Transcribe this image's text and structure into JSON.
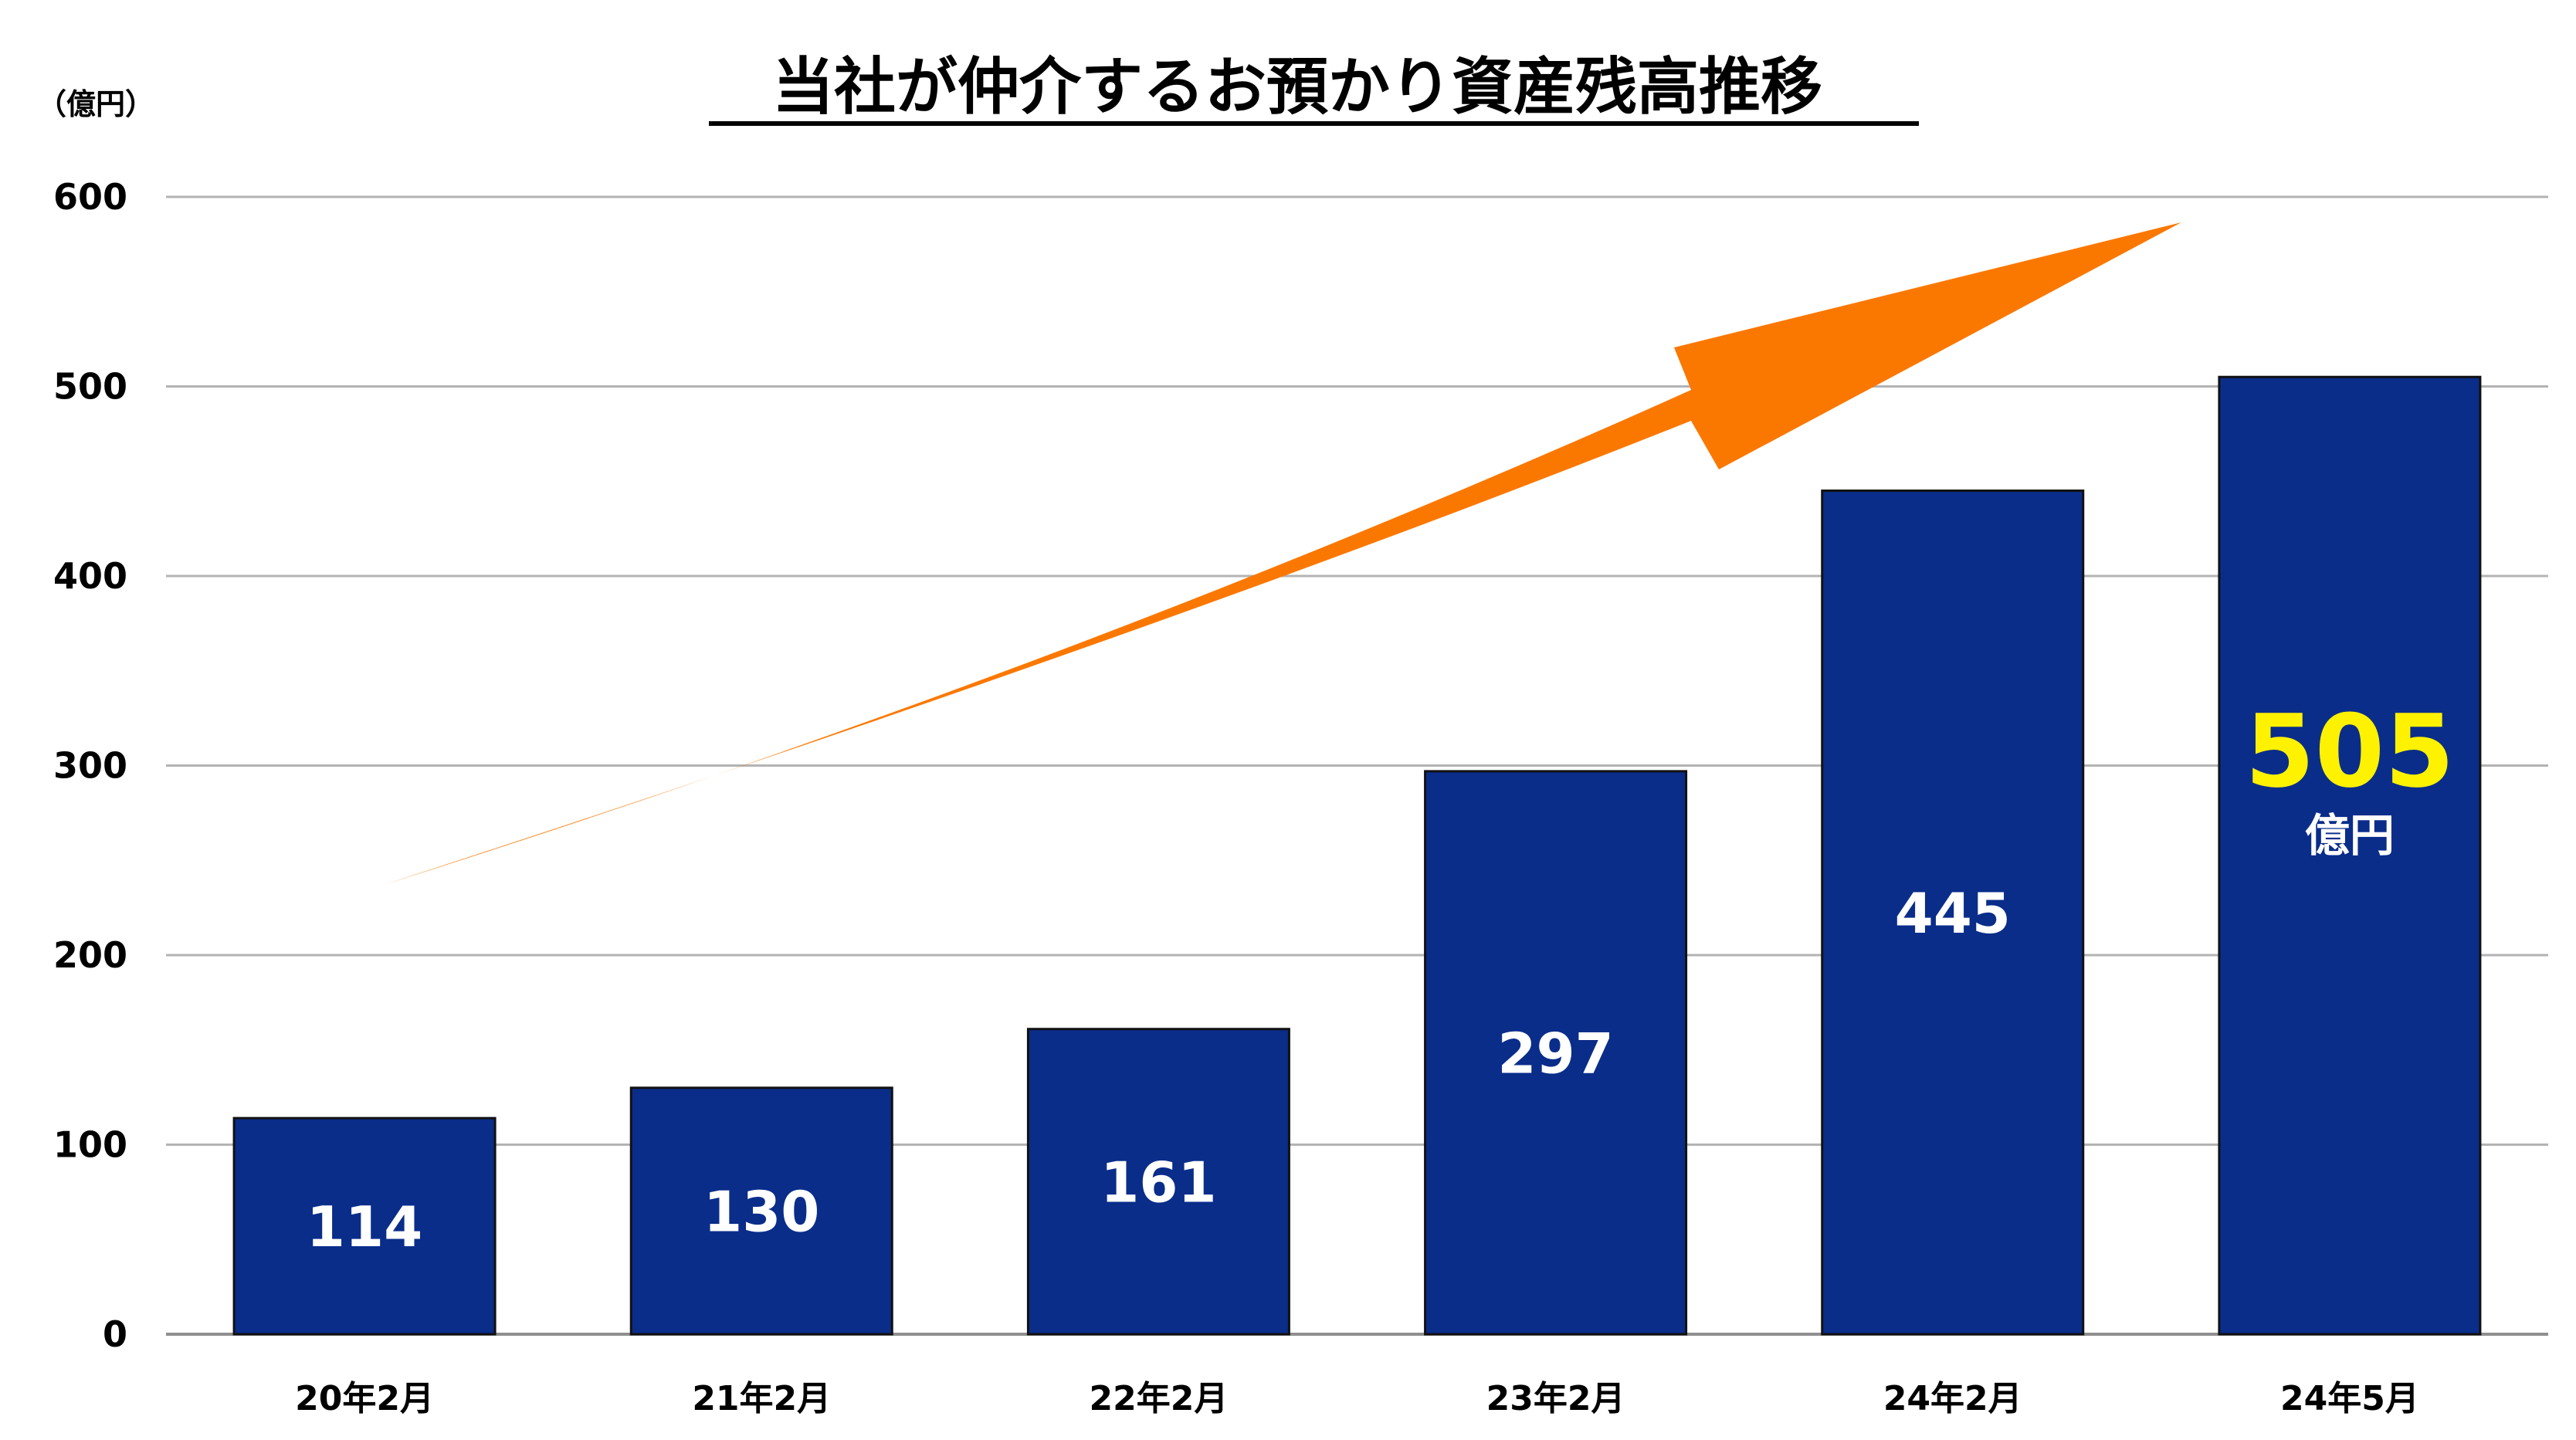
{
  "chart_data": {
    "type": "bar",
    "title": "当社が仲介するお預かり資産残高推移",
    "unit_label": "（億円）",
    "categories": [
      "20年2月",
      "21年2月",
      "22年2月",
      "23年2月",
      "24年2月",
      "24年5月"
    ],
    "values": [
      114,
      130,
      161,
      297,
      445,
      505
    ],
    "data_labels": [
      "114",
      "130",
      "161",
      "297",
      "445",
      "505"
    ],
    "highlight": {
      "index": 5,
      "unit": "億円"
    },
    "ylim": [
      0,
      600
    ],
    "yticks": [
      0,
      100,
      200,
      300,
      400,
      500,
      600
    ],
    "grid": true,
    "annotation": "upward-trend-arrow"
  },
  "colors": {
    "bar": "#0a2d8a",
    "bar_border": "#111111",
    "grid": "#b3b3b3",
    "arrow": "#fb7800",
    "highlight_text": "#fff200"
  }
}
